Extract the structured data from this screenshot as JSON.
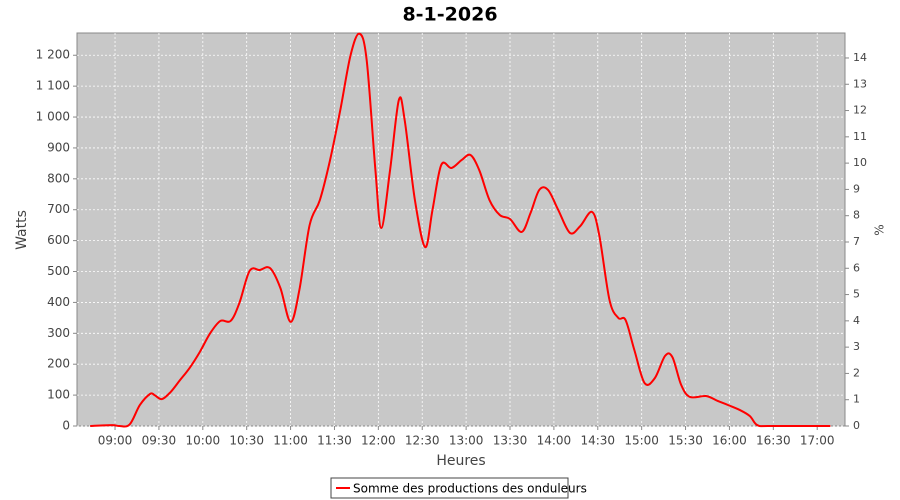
{
  "chart_data": {
    "type": "line",
    "title": "8-1-2026",
    "x_label": "Heures",
    "y_label": "Watts",
    "y2_label": "%",
    "x": [
      "08:43",
      "08:58",
      "09:03",
      "09:10",
      "09:17",
      "09:24",
      "09:27",
      "09:32",
      "09:38",
      "09:44",
      "09:51",
      "09:58",
      "10:05",
      "10:12",
      "10:19",
      "10:25",
      "10:32",
      "10:39",
      "10:46",
      "10:53",
      "11:00",
      "11:06",
      "11:13",
      "11:20",
      "11:27",
      "11:34",
      "11:41",
      "11:47",
      "11:52",
      "11:58",
      "12:02",
      "12:08",
      "12:14",
      "12:18",
      "12:25",
      "12:32",
      "12:37",
      "12:43",
      "12:50",
      "12:57",
      "13:03",
      "13:09",
      "13:16",
      "13:23",
      "13:30",
      "13:38",
      "13:44",
      "13:50",
      "13:56",
      "14:03",
      "14:11",
      "14:18",
      "14:26",
      "14:31",
      "14:38",
      "14:44",
      "14:49",
      "14:55",
      "15:02",
      "15:09",
      "15:16",
      "15:21",
      "15:27",
      "15:33",
      "15:44",
      "15:52",
      "15:59",
      "16:07",
      "16:14",
      "16:19",
      "16:28",
      "17:09"
    ],
    "series": [
      {
        "name": "Somme des productions des onduleurs",
        "color": "#ff0000",
        "values": [
          0,
          3,
          0,
          5,
          68,
          104,
          100,
          87,
          110,
          146,
          188,
          240,
          300,
          340,
          340,
          398,
          502,
          505,
          511,
          447,
          337,
          440,
          650,
          731,
          861,
          1023,
          1200,
          1270,
          1185,
          828,
          641,
          828,
          1055,
          990,
          731,
          579,
          699,
          845,
          835,
          861,
          877,
          828,
          731,
          683,
          670,
          628,
          689,
          764,
          764,
          699,
          625,
          647,
          693,
          618,
          408,
          350,
          343,
          246,
          139,
          155,
          227,
          223,
          133,
          94,
          97,
          81,
          68,
          52,
          32,
          3,
          0,
          0
        ]
      }
    ],
    "xlim": [
      "08:34",
      "17:19"
    ],
    "xticks": [
      "09:00",
      "09:30",
      "10:00",
      "10:30",
      "11:00",
      "11:30",
      "12:00",
      "12:30",
      "13:00",
      "13:30",
      "14:00",
      "14:30",
      "15:00",
      "15:30",
      "16:00",
      "16:30",
      "17:00"
    ],
    "ylim": [
      0,
      1272
    ],
    "yticks": [
      0,
      100,
      200,
      300,
      400,
      500,
      600,
      700,
      800,
      900,
      {
        "value": 1000,
        "label": "1 000"
      },
      {
        "value": 1100,
        "label": "1 100"
      },
      {
        "value": 1200,
        "label": "1 200"
      }
    ],
    "y2lim": [
      0,
      14.95
    ],
    "y2ticks": [
      0,
      1,
      2,
      3,
      4,
      5,
      6,
      7,
      8,
      9,
      10,
      11,
      12,
      13,
      14
    ],
    "grid": true,
    "legend": "bottom"
  }
}
